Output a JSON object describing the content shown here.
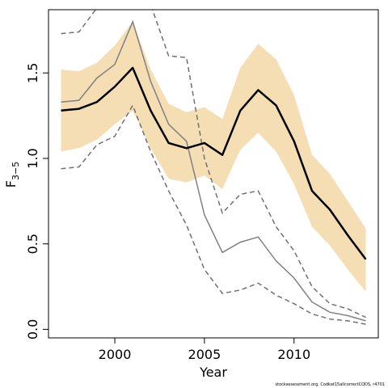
{
  "chart_data": {
    "type": "line",
    "xlabel": "Year",
    "ylabel": "F",
    "ylabel_bar": "‾‾",
    "ylabel_sub": "3−5",
    "xlim": [
      1996.3,
      2014.7
    ],
    "ylim": [
      -0.05,
      1.87
    ],
    "x_ticks": [
      2000,
      2005,
      2010
    ],
    "y_ticks": [
      0.0,
      0.5,
      1.0,
      1.5
    ],
    "y_tick_labels": [
      "0.0",
      "0.5",
      "1.0",
      "1.5"
    ],
    "x_tick_labels": [
      "2000",
      "2005",
      "2010"
    ],
    "caption": "stockassessment.org, Codkat15allcorrectCODS, r4701",
    "colors": {
      "band": "#f5deb3",
      "main": "#000000",
      "comparison": "#808080",
      "comparison_ci": "#707070"
    },
    "x": [
      1997,
      1998,
      1999,
      2000,
      2001,
      2002,
      2003,
      2004,
      2005,
      2006,
      2007,
      2008,
      2009,
      2010,
      2011,
      2012,
      2013,
      2014
    ],
    "series": [
      {
        "role": "estimate",
        "values": [
          1.28,
          1.29,
          1.33,
          1.42,
          1.53,
          1.28,
          1.09,
          1.06,
          1.09,
          1.02,
          1.28,
          1.4,
          1.31,
          1.1,
          0.81,
          0.7,
          0.55,
          0.41
        ]
      },
      {
        "role": "ci_upper",
        "values": [
          1.52,
          1.51,
          1.56,
          1.66,
          1.8,
          1.52,
          1.32,
          1.27,
          1.3,
          1.23,
          1.53,
          1.67,
          1.58,
          1.37,
          1.02,
          0.91,
          0.75,
          0.59
        ]
      },
      {
        "role": "ci_lower",
        "values": [
          1.04,
          1.06,
          1.11,
          1.2,
          1.28,
          1.06,
          0.88,
          0.86,
          0.9,
          0.82,
          1.05,
          1.15,
          1.04,
          0.85,
          0.6,
          0.49,
          0.35,
          0.22
        ]
      },
      {
        "role": "comparison",
        "values": [
          1.33,
          1.34,
          1.47,
          1.55,
          1.8,
          1.45,
          1.2,
          1.1,
          0.67,
          0.45,
          0.51,
          0.54,
          0.4,
          0.3,
          0.16,
          0.1,
          0.08,
          0.05
        ]
      },
      {
        "role": "comparison_ci_upper",
        "values": [
          1.73,
          1.74,
          1.88,
          2.0,
          2.4,
          1.9,
          1.6,
          1.59,
          1.0,
          0.68,
          0.79,
          0.81,
          0.6,
          0.46,
          0.25,
          0.15,
          0.12,
          0.07
        ]
      },
      {
        "role": "comparison_ci_lower",
        "values": [
          0.94,
          0.95,
          1.08,
          1.13,
          1.31,
          1.04,
          0.81,
          0.61,
          0.35,
          0.21,
          0.23,
          0.27,
          0.2,
          0.15,
          0.09,
          0.06,
          0.05,
          0.03
        ]
      }
    ]
  }
}
